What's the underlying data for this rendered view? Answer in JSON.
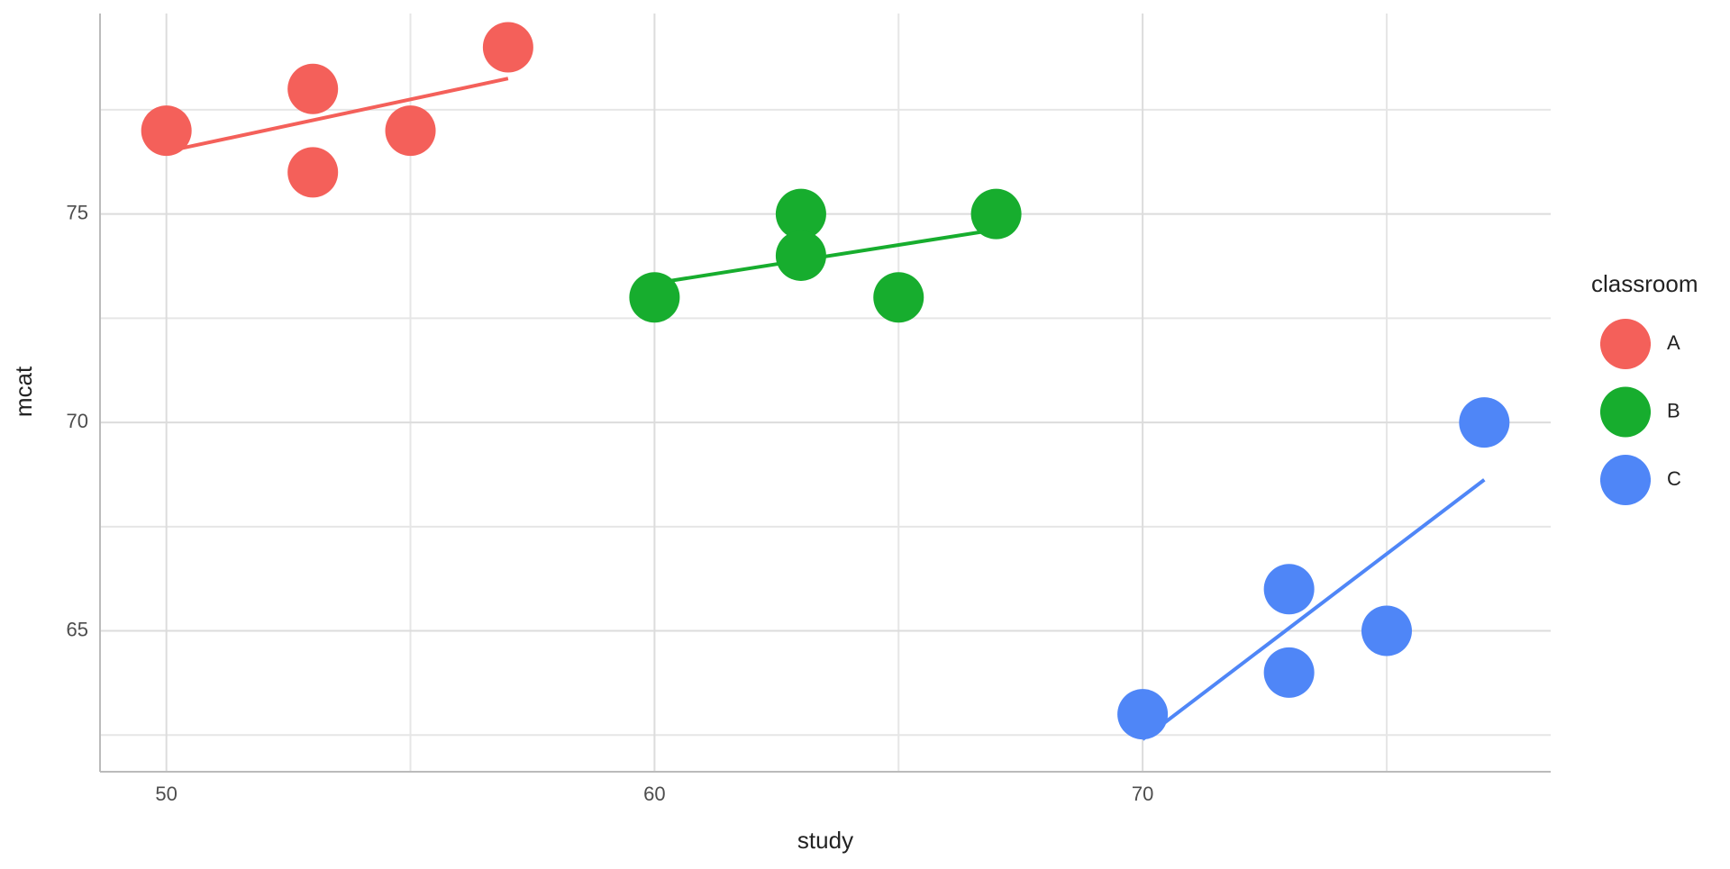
{
  "chart_data": {
    "type": "scatter",
    "xlabel": "study",
    "ylabel": "mcat",
    "legend_title": "classroom",
    "smooth": "lm",
    "grid": true,
    "xlim": [
      48.64,
      78.36
    ],
    "xticks": [
      50,
      60,
      70
    ],
    "xminor": [
      55,
      65,
      75
    ],
    "ylim": [
      61.62,
      79.81
    ],
    "yticks": [
      65,
      70,
      75
    ],
    "yminor": [
      62.5,
      67.5,
      72.5,
      77.5
    ],
    "series": [
      {
        "name": "A",
        "color": "#F4605A",
        "x": [
          50,
          53,
          53,
          55,
          57
        ],
        "values": [
          77,
          78,
          76,
          77,
          79
        ]
      },
      {
        "name": "B",
        "color": "#17AD2E",
        "x": [
          60,
          63,
          63,
          65,
          67
        ],
        "values": [
          73,
          75,
          74,
          73,
          75
        ]
      },
      {
        "name": "C",
        "color": "#4F86F7",
        "x": [
          70,
          73,
          73,
          75,
          77
        ],
        "values": [
          63,
          66,
          64,
          65,
          70
        ]
      }
    ]
  }
}
